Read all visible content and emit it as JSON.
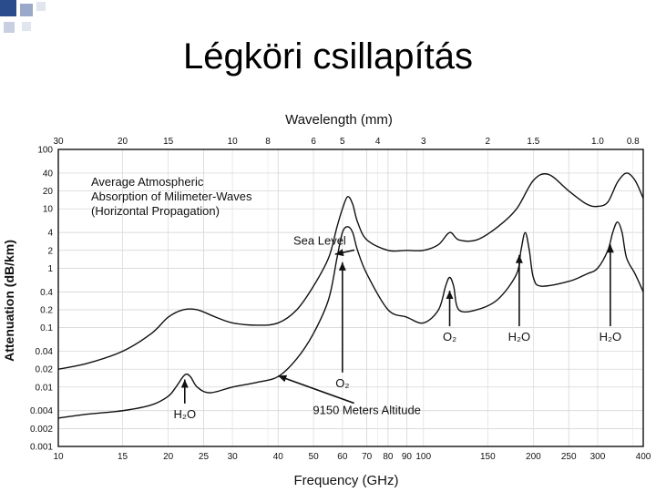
{
  "slide": {
    "title": "Légköri csillapítás",
    "accent_color": "#2b4c8c"
  },
  "chart_data": {
    "type": "line",
    "title": "Average Atmospheric Absorption of Milimeter-Waves (Horizontal Propagation)",
    "title_lines": [
      "Average Atmospheric",
      "Absorption of Milimeter-Waves",
      "(Horizontal Propagation)"
    ],
    "xlabel": "Frequency (GHz)",
    "ylabel": "Attenuation (dB/km)",
    "x2label": "Wavelength (mm)",
    "xscale": "log",
    "yscale": "log",
    "xlim": [
      10,
      400
    ],
    "ylim": [
      0.001,
      100
    ],
    "grid": true,
    "x_ticks": [
      10,
      15,
      20,
      25,
      30,
      40,
      50,
      60,
      70,
      80,
      90,
      100,
      150,
      200,
      250,
      300,
      400
    ],
    "x_tick_labels": [
      "10",
      "15",
      "20",
      "25",
      "30",
      "40",
      "50",
      "60",
      "70",
      "80",
      "90",
      "100",
      "150",
      "200",
      "250",
      "300",
      "400"
    ],
    "y_ticks": [
      0.001,
      0.002,
      0.004,
      0.01,
      0.02,
      0.04,
      0.1,
      0.2,
      0.4,
      1,
      2,
      4,
      10,
      20,
      40,
      100
    ],
    "y_tick_labels": [
      "0.001",
      "0.002",
      "0.004",
      "0.01",
      "0.02",
      "0.04",
      "0.1",
      "0.2",
      "0.4",
      "1",
      "2",
      "4",
      "10",
      "20",
      "40",
      "100"
    ],
    "wavelength_ticks_mm": [
      30,
      20,
      15,
      10,
      8,
      6,
      5,
      4,
      3,
      2,
      1.5,
      1.0,
      0.8
    ],
    "wavelength_tick_labels": [
      "30",
      "20",
      "15",
      "10",
      "8",
      "6",
      "5",
      "4",
      "3",
      "2",
      "1.5",
      "1.0",
      "0.8"
    ],
    "series": [
      {
        "name": "Sea Level",
        "x": [
          10,
          12,
          15,
          18,
          20,
          22,
          24,
          27,
          30,
          35,
          40,
          45,
          50,
          55,
          58,
          60,
          62,
          64,
          66,
          70,
          80,
          90,
          100,
          110,
          118,
          125,
          140,
          160,
          180,
          200,
          220,
          250,
          280,
          300,
          320,
          340,
          360,
          380,
          400
        ],
        "y": [
          0.02,
          0.025,
          0.04,
          0.08,
          0.15,
          0.2,
          0.2,
          0.15,
          0.12,
          0.11,
          0.12,
          0.2,
          0.5,
          1.5,
          5,
          10,
          16,
          12,
          6,
          3,
          2,
          2,
          2,
          2.5,
          4,
          3,
          3,
          5,
          10,
          30,
          38,
          20,
          12,
          11,
          13,
          28,
          40,
          30,
          15
        ]
      },
      {
        "name": "9150 Meters Altitude",
        "x": [
          10,
          12,
          15,
          18,
          20,
          21,
          22.2,
          23,
          24,
          26,
          30,
          35,
          40,
          45,
          50,
          55,
          58,
          60,
          62,
          64,
          66,
          70,
          80,
          90,
          100,
          110,
          115,
          118,
          121,
          125,
          140,
          160,
          180,
          185,
          190,
          195,
          200,
          210,
          250,
          280,
          300,
          320,
          330,
          340,
          350,
          360,
          380,
          400
        ],
        "y": [
          0.003,
          0.0035,
          0.004,
          0.005,
          0.007,
          0.01,
          0.016,
          0.015,
          0.01,
          0.008,
          0.01,
          0.012,
          0.015,
          0.03,
          0.08,
          0.3,
          1.5,
          4,
          5,
          4,
          2,
          0.8,
          0.2,
          0.15,
          0.12,
          0.2,
          0.5,
          0.7,
          0.5,
          0.2,
          0.2,
          0.3,
          0.8,
          2,
          4,
          2,
          0.7,
          0.5,
          0.6,
          0.8,
          1,
          2,
          4,
          6,
          4,
          1.5,
          0.8,
          0.4
        ]
      }
    ],
    "annotations": [
      {
        "text": "Sea Level",
        "x": 52,
        "y": 2.5
      },
      {
        "text": "9150 Meters Altitude",
        "x": 70,
        "y": 0.0035
      },
      {
        "text": "H₂O",
        "x": 22.2,
        "y": 0.003,
        "arrow_to": [
          22.2,
          0.016
        ]
      },
      {
        "text": "O₂",
        "x": 60,
        "y": 0.01,
        "arrow_to": [
          60,
          1.5
        ]
      },
      {
        "text": "O₂",
        "x": 118,
        "y": 0.06,
        "arrow_to": [
          118,
          0.5
        ]
      },
      {
        "text": "H₂O",
        "x": 183,
        "y": 0.06,
        "arrow_to": [
          183,
          2
        ]
      },
      {
        "text": "H₂O",
        "x": 325,
        "y": 0.06,
        "arrow_to": [
          325,
          3
        ]
      }
    ]
  }
}
